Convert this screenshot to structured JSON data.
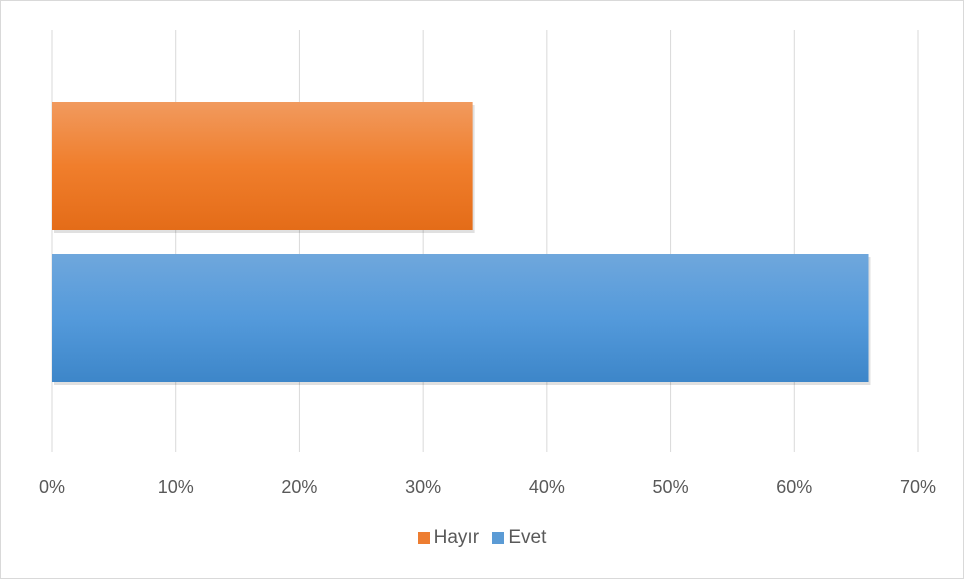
{
  "chart_data": {
    "type": "bar",
    "orientation": "horizontal",
    "categories": [
      "Evet",
      "Hayır"
    ],
    "series": [
      {
        "name": "Hayır",
        "value": 0.34,
        "color": "#ED7D31"
      },
      {
        "name": "Evet",
        "value": 0.66,
        "color": "#5B9BD5"
      }
    ],
    "xlim": [
      0,
      0.7
    ],
    "x_ticks": [
      "0%",
      "10%",
      "20%",
      "30%",
      "40%",
      "50%",
      "60%",
      "70%"
    ],
    "grid": true,
    "legend_position": "bottom"
  },
  "legend": {
    "items": [
      {
        "label": "Hayır",
        "color": "#ED7D31"
      },
      {
        "label": "Evet",
        "color": "#5B9BD5"
      }
    ]
  }
}
